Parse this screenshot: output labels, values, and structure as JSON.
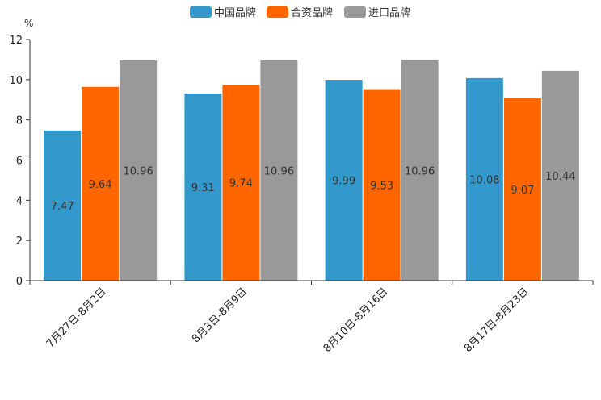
{
  "chart_data": {
    "type": "bar",
    "title": "",
    "xlabel": "",
    "ylabel": "%",
    "ylim": [
      0,
      12
    ],
    "yticks": [
      0,
      2,
      4,
      6,
      8,
      10,
      12
    ],
    "categories": [
      "7月27日-8月2日",
      "8月3日-8月9日",
      "8月10日-8月16日",
      "8月17日-8月23日"
    ],
    "series": [
      {
        "name": "中国品牌",
        "color": "#3399cc",
        "values": [
          7.47,
          9.31,
          9.99,
          10.08
        ]
      },
      {
        "name": "合资品牌",
        "color": "#ff6600",
        "values": [
          9.64,
          9.74,
          9.53,
          9.07
        ]
      },
      {
        "name": "进口品牌",
        "color": "#999999",
        "values": [
          10.96,
          10.96,
          10.96,
          10.44
        ]
      }
    ],
    "legend_position": "top-center",
    "grid": false
  }
}
